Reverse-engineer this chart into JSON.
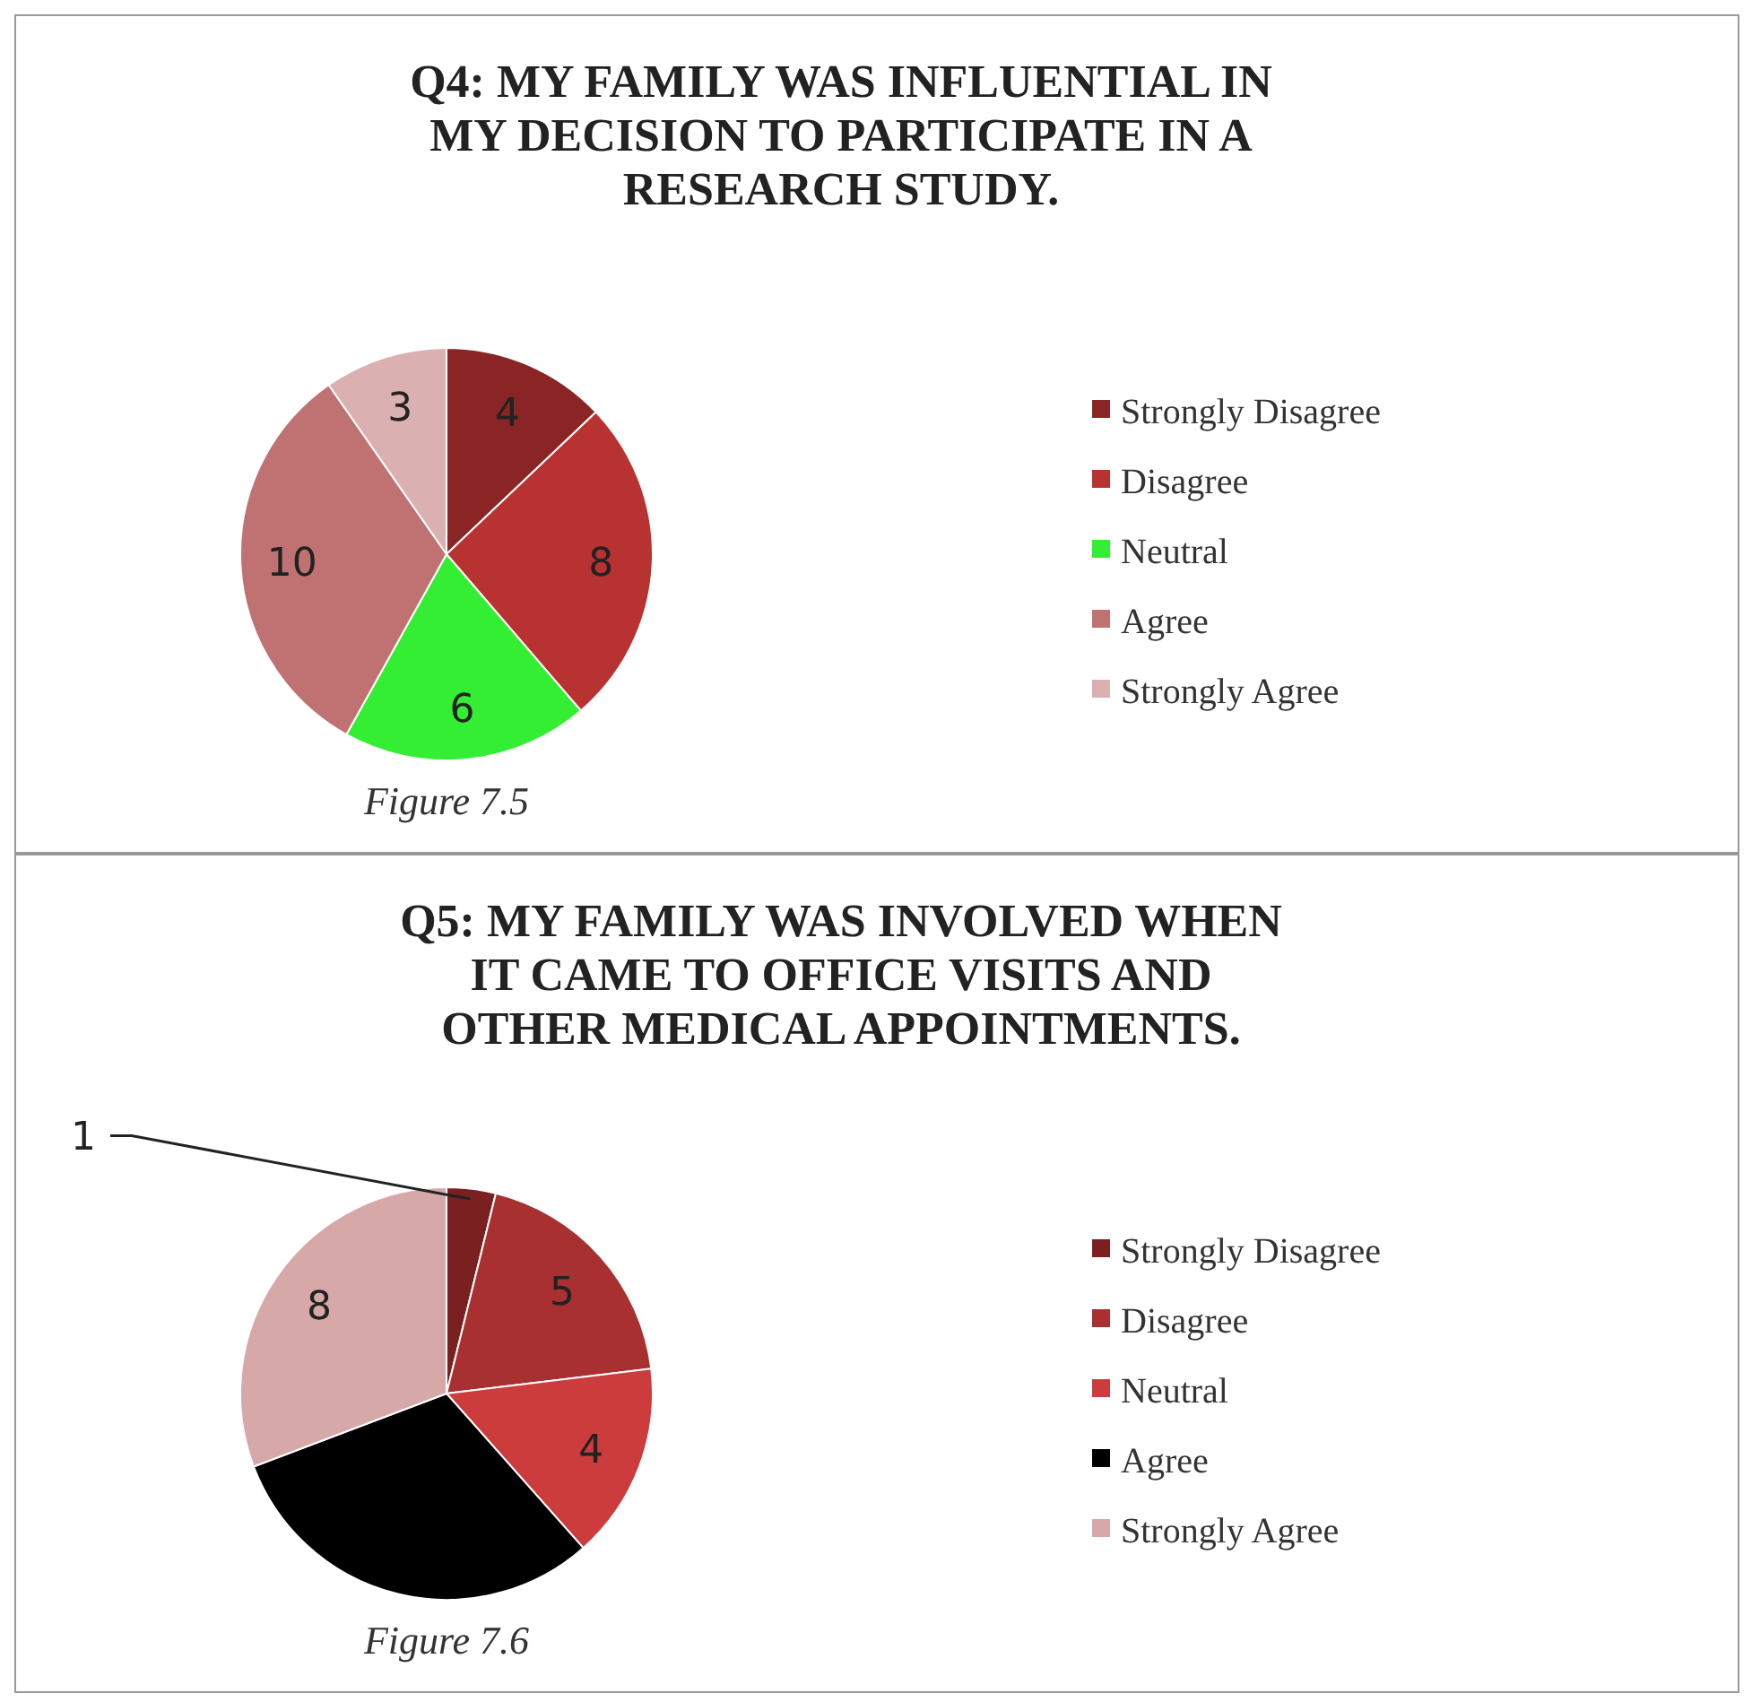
{
  "chart_data": [
    {
      "type": "pie",
      "title": "Q4: MY FAMILY WAS INFLUENTIAL IN MY DECISION TO PARTICIPATE IN A RESEARCH STUDY.",
      "categories": [
        "Strongly Disagree",
        "Disagree",
        "Neutral",
        "Agree",
        "Strongly Agree"
      ],
      "values": [
        4,
        8,
        6,
        10,
        3
      ],
      "colors": [
        "#8b2525",
        "#b83232",
        "#33ee33",
        "#c07272",
        "#dab0b0"
      ],
      "data_labels": true,
      "legend": "right",
      "annotations": [
        "Figure 7.5"
      ]
    },
    {
      "type": "pie",
      "title": "Q5: MY FAMILY WAS INVOLVED WHEN IT CAME TO OFFICE VISITS AND OTHER MEDICAL APPOINTMENTS.",
      "categories": [
        "Strongly Disagree",
        "Disagree",
        "Neutral",
        "Agree",
        "Strongly Agree"
      ],
      "values": [
        1,
        5,
        4,
        8,
        8
      ],
      "colors": [
        "#7a2020",
        "#a83030",
        "#cc3c3c",
        "#000000",
        "#d6a8a8"
      ],
      "value_labels": [
        "1",
        "5",
        "4",
        null,
        "8"
      ],
      "legend": "right",
      "annotations": [
        "Figure 7.6"
      ]
    }
  ]
}
